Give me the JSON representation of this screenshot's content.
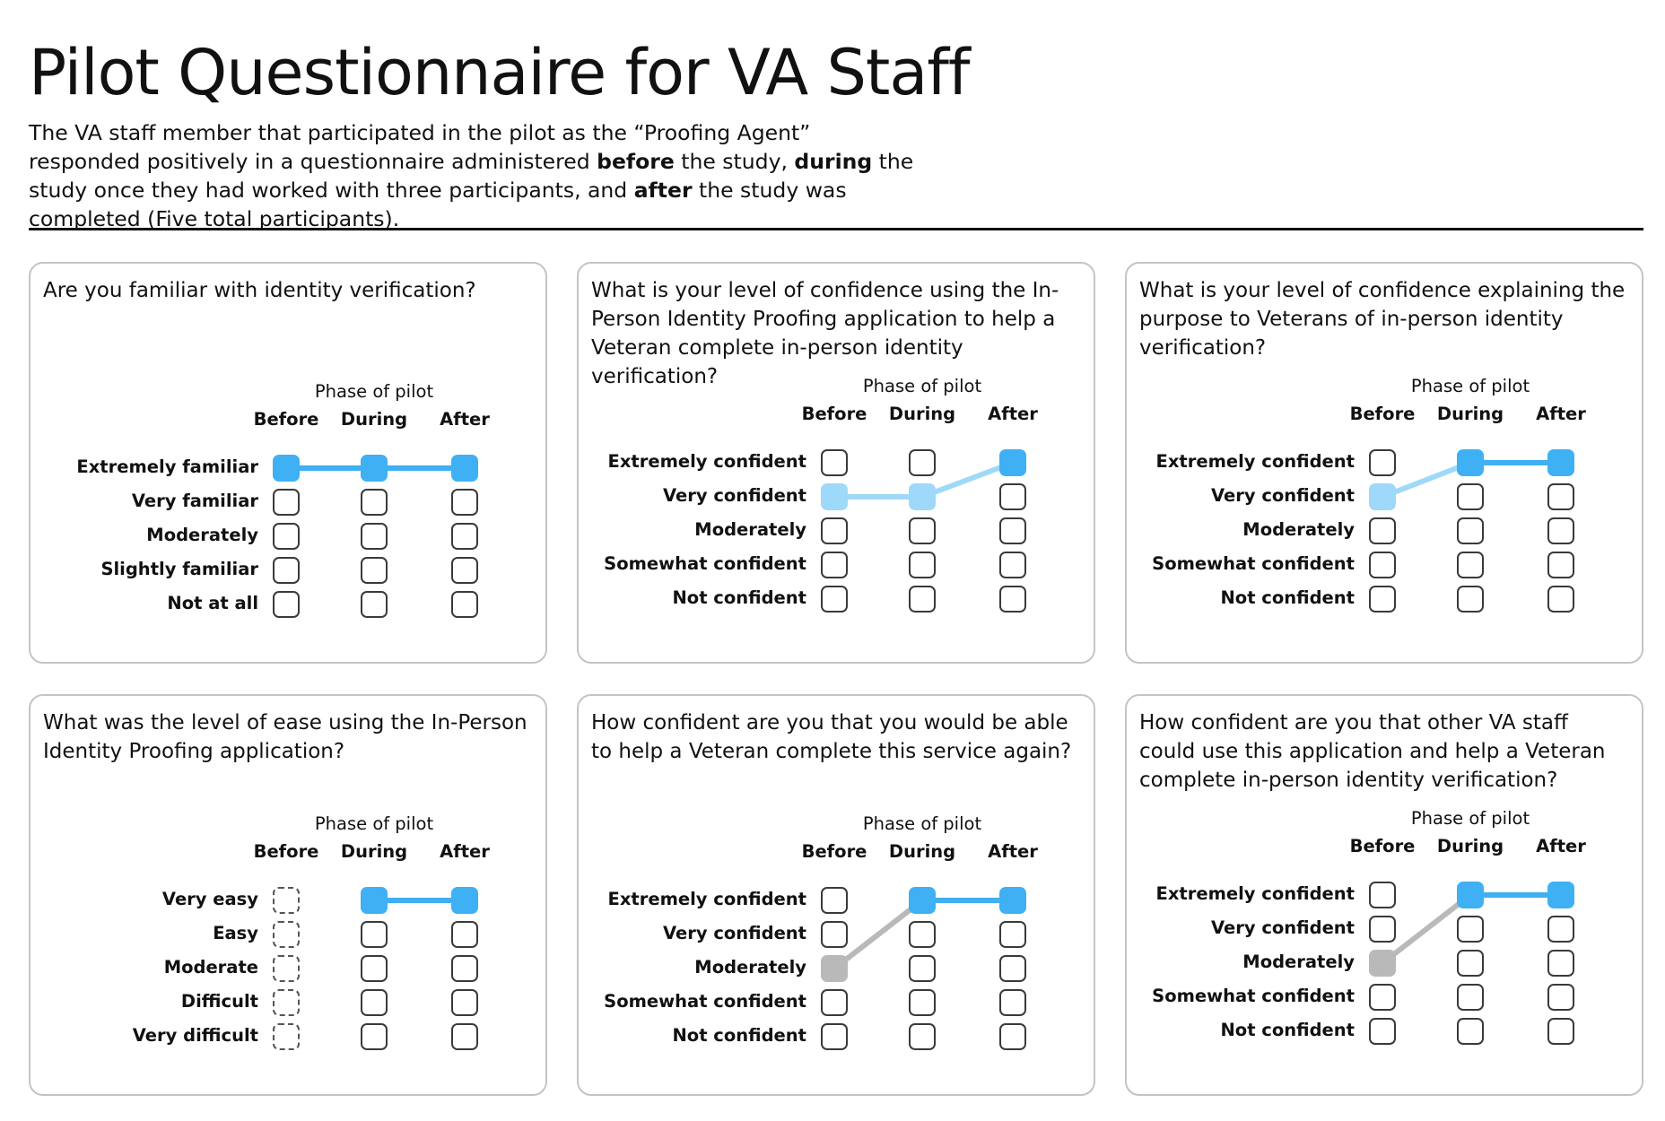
{
  "title": "Pilot Questionnaire for VA Staff",
  "intro": {
    "p1": "The VA staff member that participated in the pilot as the “Proofing Agent” responded positively in a questionnaire administered ",
    "b1": "before",
    "p2": " the study, ",
    "b2": "during",
    "p3": " the study once they had worked with three participants, and ",
    "b3": "after",
    "p4": " the study was completed (Five total participants)."
  },
  "colors": {
    "blue": "#3fb0f3",
    "light_blue": "#9fd9f9",
    "gray": "#b9b9b9",
    "border": "#3a3a3a",
    "card_border": "#c4c4c4"
  },
  "cards": [
    {
      "question": "Are you familiar with identity verification?",
      "phase_label": "Phase of pilot",
      "columns": [
        "Before",
        "During",
        "After"
      ],
      "rows": [
        "Extremely familiar",
        "Very familiar",
        "Moderately",
        "Slightly familiar",
        "Not at all"
      ],
      "selected": [
        0,
        0,
        0
      ],
      "colors": [
        "blue",
        "blue",
        "blue"
      ],
      "segments": [
        "blue",
        "blue"
      ],
      "before_style": "solid"
    },
    {
      "question": "What is your level of confidence using the In-Person Identity Proofing application to help a Veteran complete in-person identity verification?",
      "phase_label": "Phase of pilot",
      "columns": [
        "Before",
        "During",
        "After"
      ],
      "rows": [
        "Extremely confident",
        "Very confident",
        "Moderately",
        "Somewhat confident",
        "Not confident"
      ],
      "selected": [
        1,
        1,
        0
      ],
      "colors": [
        "light_blue",
        "light_blue",
        "blue"
      ],
      "segments": [
        "light_blue",
        "light_blue"
      ],
      "before_style": "solid"
    },
    {
      "question": "What is your level of confidence explaining the purpose to Veterans of in-person identity verification?",
      "phase_label": "Phase of pilot",
      "columns": [
        "Before",
        "During",
        "After"
      ],
      "rows": [
        "Extremely confident",
        "Very confident",
        "Moderately",
        "Somewhat confident",
        "Not confident"
      ],
      "selected": [
        1,
        0,
        0
      ],
      "colors": [
        "light_blue",
        "blue",
        "blue"
      ],
      "segments": [
        "light_blue",
        "blue"
      ],
      "before_style": "solid"
    },
    {
      "question": "What was the level of ease using the In-Person Identity Proofing application?",
      "phase_label": "Phase of pilot",
      "columns": [
        "Before",
        "During",
        "After"
      ],
      "rows": [
        "Very easy",
        "Easy",
        "Moderate",
        "Difficult",
        "Very difficult"
      ],
      "selected": [
        null,
        0,
        0
      ],
      "colors": [
        null,
        "blue",
        "blue"
      ],
      "segments": [
        null,
        "blue"
      ],
      "before_style": "dashed"
    },
    {
      "question": "How confident are you that you would be able to help a Veteran complete this service again?",
      "phase_label": "Phase of pilot",
      "columns": [
        "Before",
        "During",
        "After"
      ],
      "rows": [
        "Extremely confident",
        "Very confident",
        "Moderately",
        "Somewhat confident",
        "Not confident"
      ],
      "selected": [
        2,
        0,
        0
      ],
      "colors": [
        "gray",
        "blue",
        "blue"
      ],
      "segments": [
        "gray",
        "blue"
      ],
      "before_style": "solid"
    },
    {
      "question": "How confident are you that other VA staff could use this application and help a Veteran complete in-person identity verification?",
      "phase_label": "Phase of pilot",
      "columns": [
        "Before",
        "During",
        "After"
      ],
      "rows": [
        "Extremely confident",
        "Very confident",
        "Moderately",
        "Somewhat confident",
        "Not confident"
      ],
      "selected": [
        2,
        0,
        0
      ],
      "colors": [
        "gray",
        "blue",
        "blue"
      ],
      "segments": [
        "gray",
        "blue"
      ],
      "before_style": "solid"
    }
  ]
}
